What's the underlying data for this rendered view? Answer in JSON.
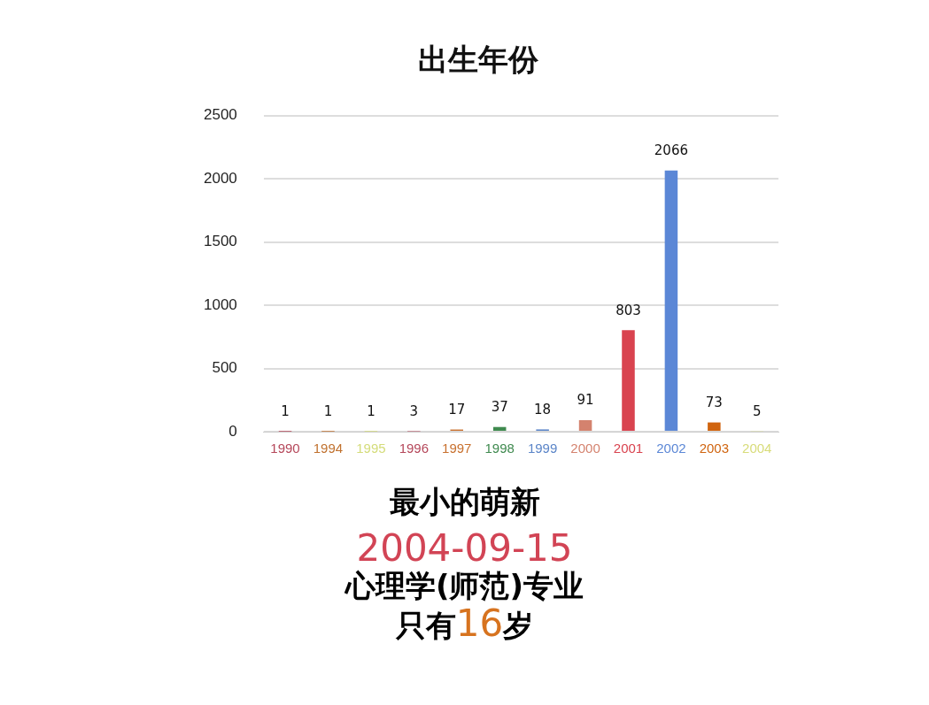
{
  "chart_data": {
    "type": "bar",
    "title": "出生年份",
    "categories": [
      "1990",
      "1994",
      "1995",
      "1996",
      "1997",
      "1998",
      "1999",
      "2000",
      "2001",
      "2002",
      "2003",
      "2004"
    ],
    "values": [
      1,
      1,
      1,
      3,
      17,
      37,
      18,
      91,
      803,
      2066,
      73,
      5
    ],
    "colors": [
      "#b5475a",
      "#c0712e",
      "#d4dc7a",
      "#b5475a",
      "#c8702e",
      "#3f8a4f",
      "#5b85c8",
      "#d4826e",
      "#d9434f",
      "#5b87d6",
      "#d0640f",
      "#d8dc7a"
    ],
    "ylim": [
      0,
      2500
    ],
    "yticks": [
      0,
      500,
      1000,
      1500,
      2000,
      2500
    ],
    "grid": "y",
    "legend": false,
    "data_labels": true,
    "annotations": [
      "最小的萌新",
      "2004-09-15",
      "心理学(师范)专业",
      "只有16岁"
    ]
  }
}
